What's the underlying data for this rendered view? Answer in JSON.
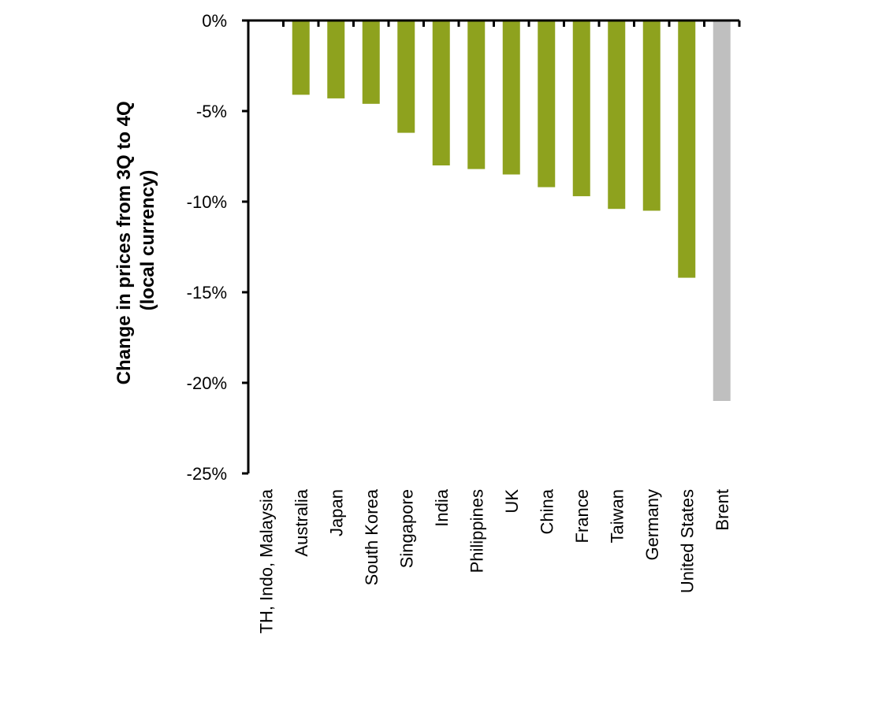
{
  "chart_data": {
    "type": "bar",
    "title": "",
    "xlabel": "",
    "ylabel_lines": [
      "Change in prices from 3Q to 4Q",
      "(local currency)"
    ],
    "ylim": [
      -25,
      0
    ],
    "yticks": [
      0,
      -5,
      -10,
      -15,
      -20,
      -25
    ],
    "ytick_labels": [
      "0%",
      "-5%",
      "-10%",
      "-15%",
      "-20%",
      "-25%"
    ],
    "grid": false,
    "categories": [
      "TH, Indo, Malaysia",
      "Australia",
      "Japan",
      "South Korea",
      "Singapore",
      "India",
      "Philippines",
      "UK",
      "China",
      "France",
      "Taiwan",
      "Germany",
      "United States",
      "Brent"
    ],
    "values": [
      0,
      -4.1,
      -4.3,
      -4.6,
      -6.2,
      -8.0,
      -8.2,
      -8.5,
      -9.2,
      -9.7,
      -10.4,
      -10.5,
      -14.2,
      -21.0
    ],
    "colors": [
      "#8ea21e",
      "#8ea21e",
      "#8ea21e",
      "#8ea21e",
      "#8ea21e",
      "#8ea21e",
      "#8ea21e",
      "#8ea21e",
      "#8ea21e",
      "#8ea21e",
      "#8ea21e",
      "#8ea21e",
      "#8ea21e",
      "#bfbfbf"
    ]
  }
}
